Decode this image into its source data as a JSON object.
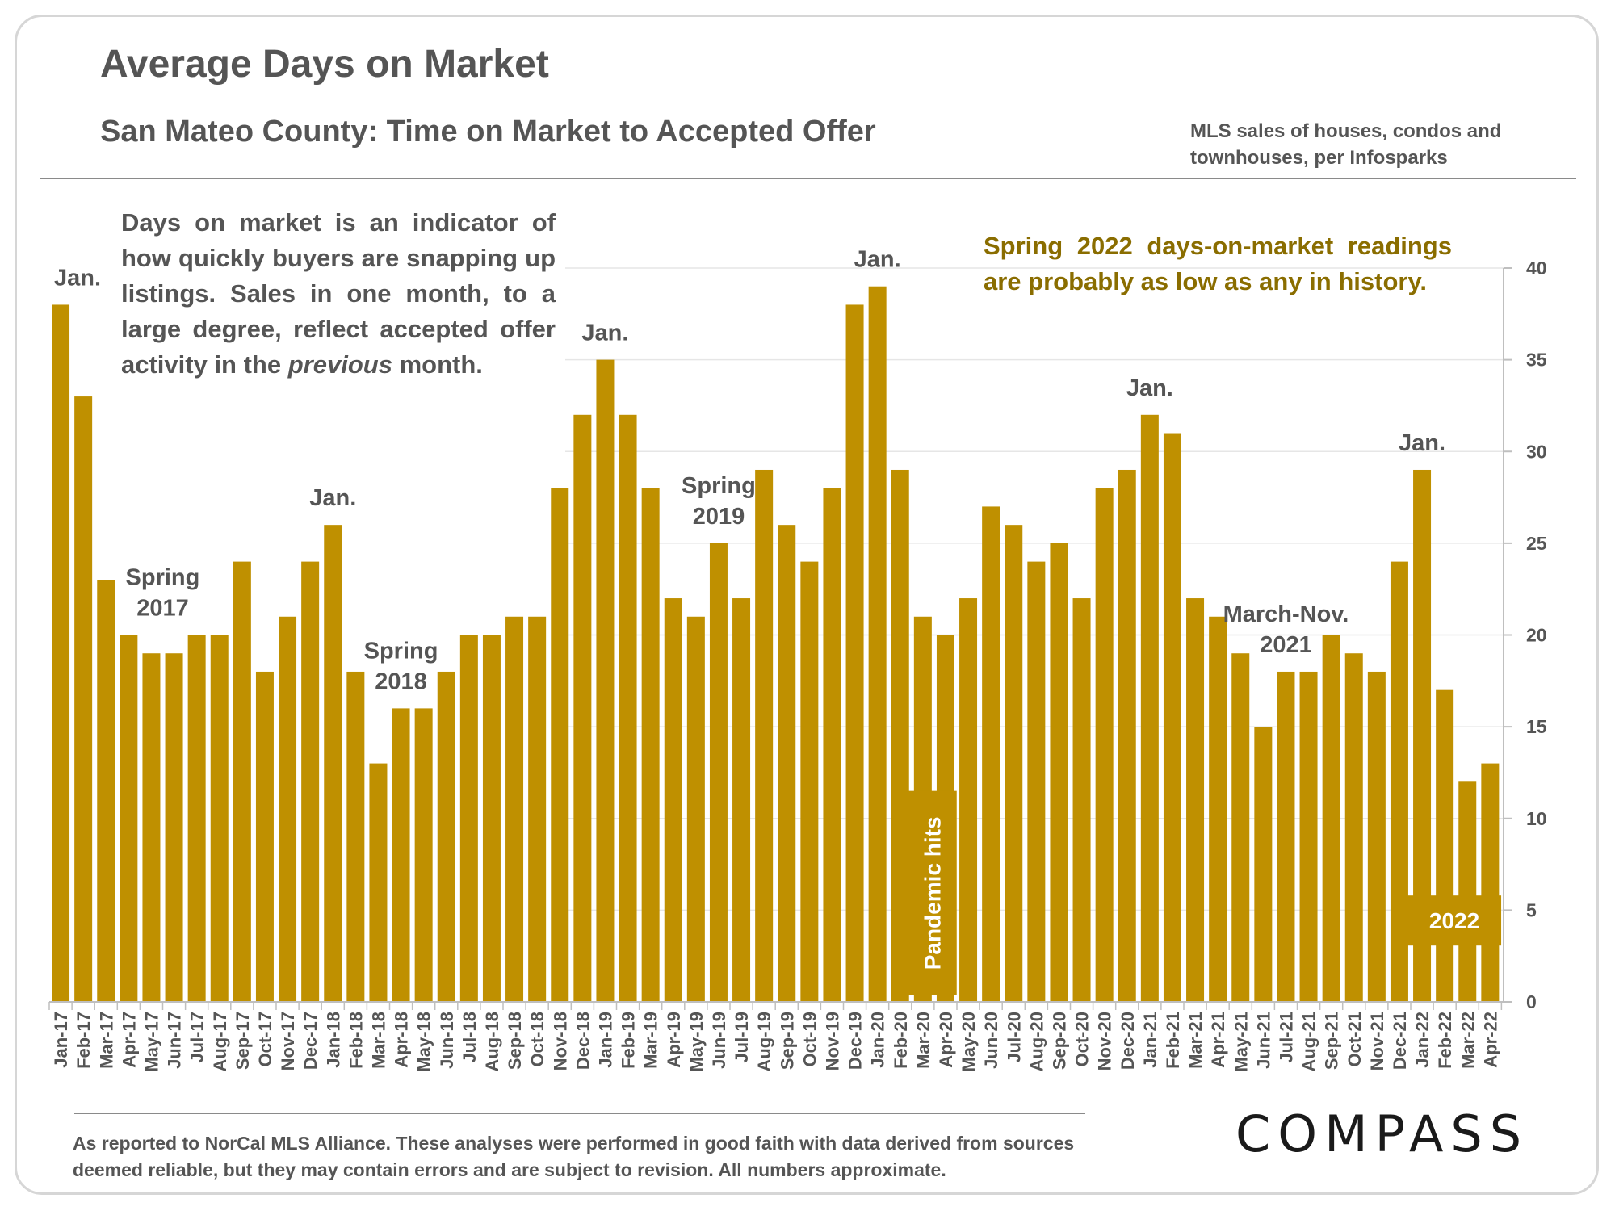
{
  "header": {
    "title": "Average Days on Market",
    "subtitle": "San Mateo County: Time on Market to Accepted Offer",
    "source_note": "MLS sales of houses, condos and townhouses, per Infosparks"
  },
  "intro_text_before": "Days on market is an indicator of how quickly buyers are snapping up listings. Sales in one month, to a large degree, reflect accepted offer activity in the ",
  "intro_text_italic": "previous",
  "intro_text_after": " month.",
  "highlight_text": "Spring 2022 days-on-market readings are probably as low as any in history.",
  "footer": {
    "disclaimer": "As reported to NorCal MLS Alliance. These analyses were performed in good faith with data derived from sources deemed reliable, but they may contain errors and are subject to revision. All numbers approximate."
  },
  "logo": {
    "text": "COMPASS"
  },
  "colors": {
    "bar": "#bf9000",
    "grid": "#e6e6e6",
    "text": "#555555",
    "highlight": "#8a6d00"
  },
  "chart_data": {
    "type": "bar",
    "categories": [
      "Jan-17",
      "Feb-17",
      "Mar-17",
      "Apr-17",
      "May-17",
      "Jun-17",
      "Jul-17",
      "Aug-17",
      "Sep-17",
      "Oct-17",
      "Nov-17",
      "Dec-17",
      "Jan-18",
      "Feb-18",
      "Mar-18",
      "Apr-18",
      "May-18",
      "Jun-18",
      "Jul-18",
      "Aug-18",
      "Sep-18",
      "Oct-18",
      "Nov-18",
      "Dec-18",
      "Jan-19",
      "Feb-19",
      "Mar-19",
      "Apr-19",
      "May-19",
      "Jun-19",
      "Jul-19",
      "Aug-19",
      "Sep-19",
      "Oct-19",
      "Nov-19",
      "Dec-19",
      "Jan-20",
      "Feb-20",
      "Mar-20",
      "Apr-20",
      "May-20",
      "Jun-20",
      "Jul-20",
      "Aug-20",
      "Sep-20",
      "Oct-20",
      "Nov-20",
      "Dec-20",
      "Jan-21",
      "Feb-21",
      "Mar-21",
      "Apr-21",
      "May-21",
      "Jun-21",
      "Jul-21",
      "Aug-21",
      "Sep-21",
      "Oct-21",
      "Nov-21",
      "Dec-21",
      "Jan-22",
      "Feb-22",
      "Mar-22",
      "Apr-22"
    ],
    "values": [
      38,
      33,
      23,
      20,
      19,
      19,
      20,
      20,
      24,
      18,
      21,
      24,
      26,
      18,
      13,
      16,
      16,
      18,
      20,
      20,
      21,
      21,
      28,
      32,
      35,
      32,
      28,
      22,
      21,
      25,
      22,
      29,
      26,
      24,
      28,
      38,
      39,
      29,
      21,
      20,
      22,
      27,
      26,
      24,
      25,
      22,
      28,
      29,
      32,
      31,
      22,
      21,
      19,
      15,
      18,
      18,
      20,
      19,
      18,
      24,
      29,
      17,
      12,
      13
    ],
    "ylim": [
      0,
      40
    ],
    "yticks": [
      0,
      5,
      10,
      15,
      20,
      25,
      30,
      35,
      40
    ],
    "y_axis_side": "right",
    "grid": true,
    "legend": "none",
    "annotations": [
      {
        "label": "Jan.",
        "category": "Jan-17"
      },
      {
        "label": "Spring\n2017",
        "category": "May-17"
      },
      {
        "label": "Jan.",
        "category": "Jan-18"
      },
      {
        "label": "Spring\n2018",
        "category": "Apr-18"
      },
      {
        "label": "Jan.",
        "category": "Jan-19"
      },
      {
        "label": "Spring\n2019",
        "category": "Jun-19"
      },
      {
        "label": "Jan.",
        "category": "Jan-20"
      },
      {
        "label": "Jan.",
        "category": "Jan-21"
      },
      {
        "label": "March-Nov.\n2021",
        "category": "Jul-21"
      },
      {
        "label": "Jan.",
        "category": "Jan-22"
      }
    ],
    "inbar_labels": [
      {
        "label": "Pandemic hits",
        "category": "Feb-20"
      },
      {
        "label": "2022",
        "category": "Jan-22"
      }
    ]
  }
}
